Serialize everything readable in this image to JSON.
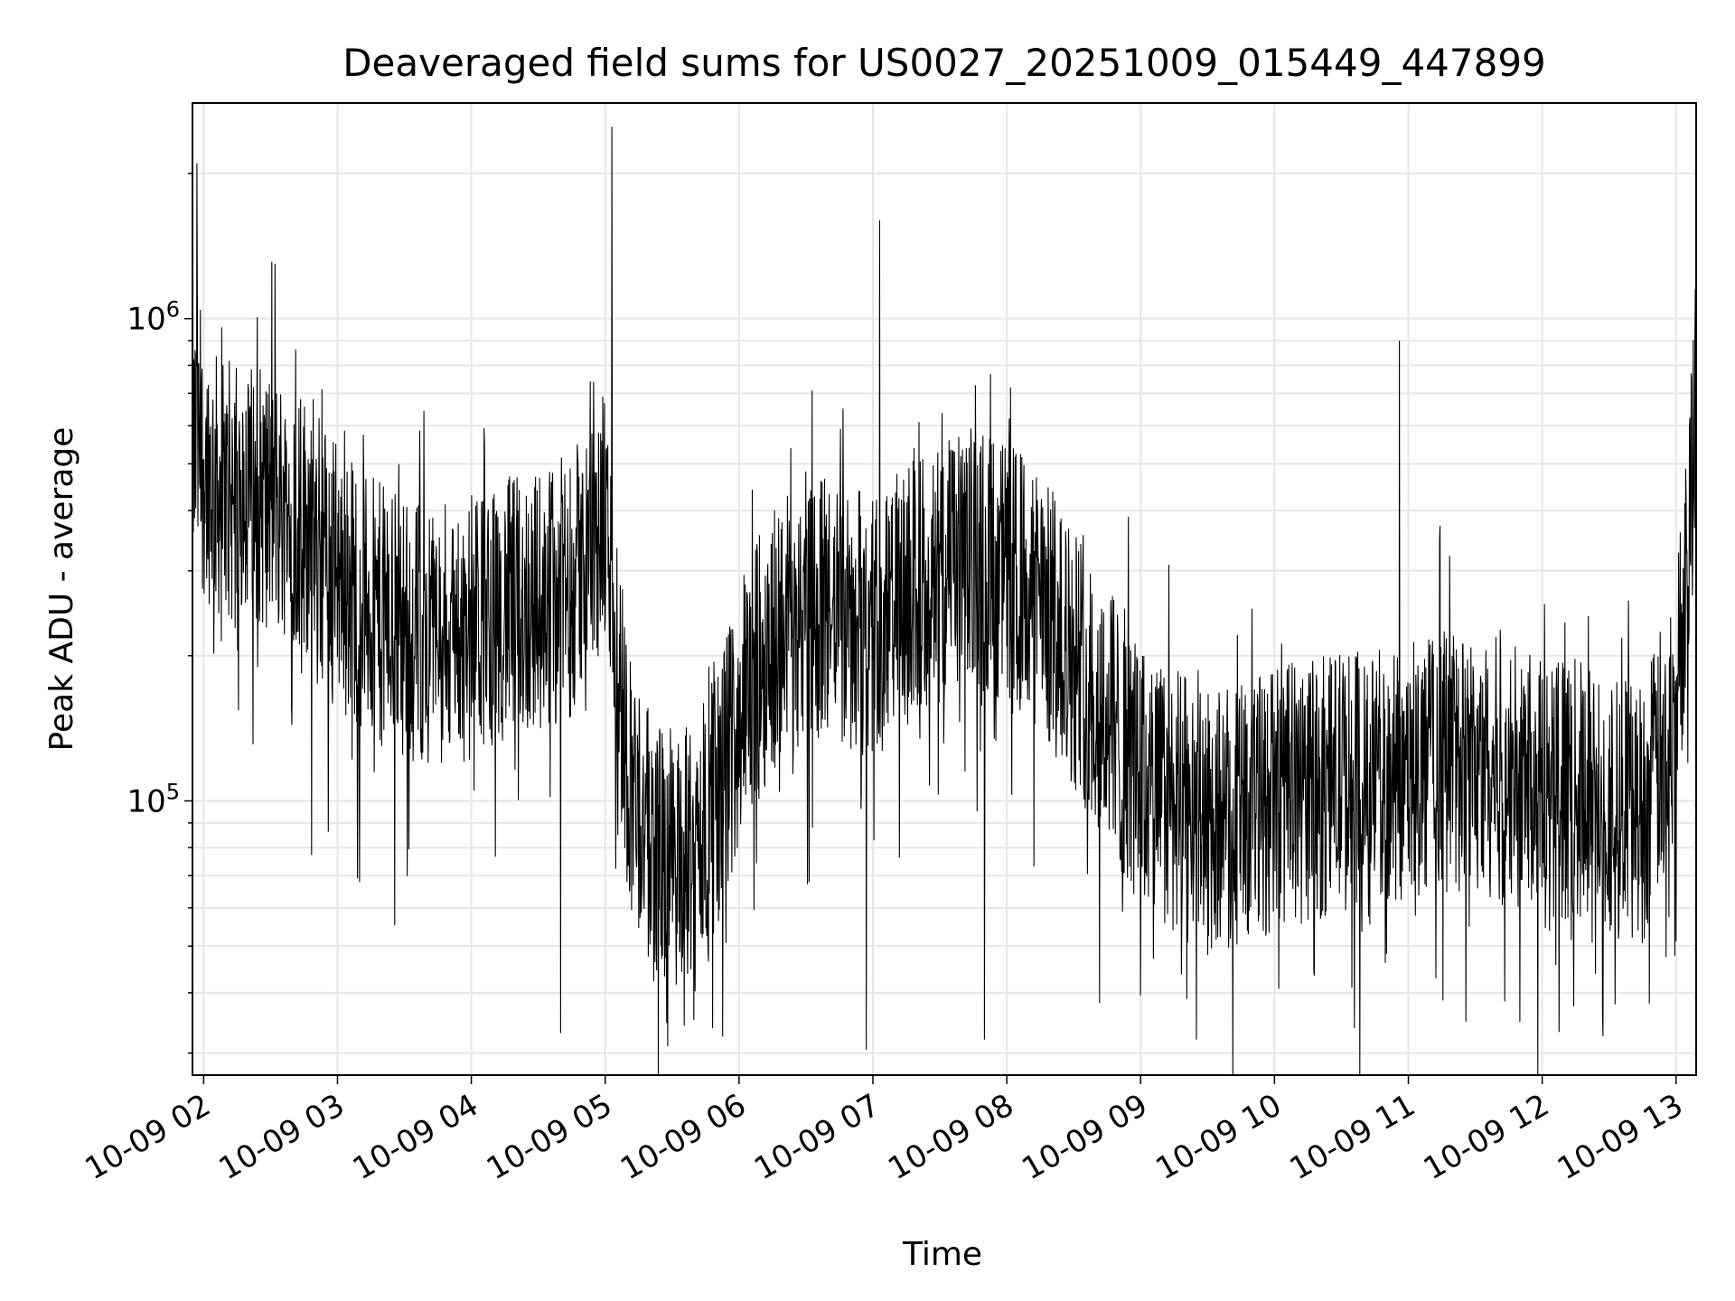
{
  "chart_data": {
    "type": "line",
    "title": "Deaveraged field sums for US0027_20251009_015449_447899",
    "xlabel": "Time",
    "ylabel": "Peak ADU - average",
    "yscale": "log",
    "ylim": [
      27000,
      2800000
    ],
    "xlim": [
      "2025-10-09 01:55",
      "2025-10-09 13:09"
    ],
    "grid": true,
    "line_color": "#000000",
    "grid_color": "#e6e6e6",
    "x_tick_labels": [
      "10-09 02",
      "10-09 03",
      "10-09 04",
      "10-09 05",
      "10-09 06",
      "10-09 07",
      "10-09 08",
      "10-09 09",
      "10-09 10",
      "10-09 11",
      "10-09 12",
      "10-09 13"
    ],
    "y_tick_labels": [
      {
        "base": "10",
        "exp": "5",
        "value": 100000
      },
      {
        "base": "10",
        "exp": "6",
        "value": 1000000
      }
    ],
    "series": [
      {
        "x": [
          "2025-10-09 01:55",
          "2025-10-09 02:00",
          "2025-10-09 02:10",
          "2025-10-09 02:20",
          "2025-10-09 02:30",
          "2025-10-09 02:45",
          "2025-10-09 03:00",
          "2025-10-09 03:15",
          "2025-10-09 03:30",
          "2025-10-09 03:45",
          "2025-10-09 04:00",
          "2025-10-09 04:15",
          "2025-10-09 04:30",
          "2025-10-09 04:45",
          "2025-10-09 05:00",
          "2025-10-09 05:10",
          "2025-10-09 05:20",
          "2025-10-09 05:30",
          "2025-10-09 05:40",
          "2025-10-09 05:50",
          "2025-10-09 06:00",
          "2025-10-09 06:15",
          "2025-10-09 06:30",
          "2025-10-09 06:45",
          "2025-10-09 07:00",
          "2025-10-09 07:15",
          "2025-10-09 07:30",
          "2025-10-09 07:45",
          "2025-10-09 08:00",
          "2025-10-09 08:15",
          "2025-10-09 08:30",
          "2025-10-09 08:45",
          "2025-10-09 09:00",
          "2025-10-09 09:15",
          "2025-10-09 09:30",
          "2025-10-09 09:45",
          "2025-10-09 10:00",
          "2025-10-09 10:15",
          "2025-10-09 10:30",
          "2025-10-09 10:45",
          "2025-10-09 11:00",
          "2025-10-09 11:15",
          "2025-10-09 11:30",
          "2025-10-09 11:45",
          "2025-10-09 12:00",
          "2025-10-09 12:15",
          "2025-10-09 12:30",
          "2025-10-09 12:45",
          "2025-10-09 13:00",
          "2025-10-09 13:09"
        ],
        "y": [
          550000,
          500000,
          420000,
          440000,
          420000,
          380000,
          300000,
          250000,
          230000,
          220000,
          230000,
          250000,
          260000,
          280000,
          380000,
          120000,
          80000,
          75000,
          80000,
          100000,
          150000,
          220000,
          250000,
          240000,
          230000,
          270000,
          300000,
          320000,
          300000,
          260000,
          200000,
          150000,
          110000,
          100000,
          90000,
          95000,
          100000,
          105000,
          110000,
          110000,
          115000,
          120000,
          120000,
          115000,
          110000,
          105000,
          100000,
          95000,
          150000,
          700000
        ]
      }
    ],
    "annotations": [
      {
        "x": "2025-10-09 01:57",
        "y": 2100000
      },
      {
        "x": "2025-10-09 02:32",
        "y": 1300000
      },
      {
        "x": "2025-10-09 05:03",
        "y": 2500000
      },
      {
        "x": "2025-10-09 07:03",
        "y": 1600000
      },
      {
        "x": "2025-10-09 10:56",
        "y": 900000
      },
      {
        "x": "2025-10-09 04:40",
        "y": 33000
      },
      {
        "x": "2025-10-09 05:28",
        "y": 31000
      },
      {
        "x": "2025-10-09 06:57",
        "y": 30500
      },
      {
        "x": "2025-10-09 07:50",
        "y": 32000
      },
      {
        "x": "2025-10-09 09:25",
        "y": 32000
      },
      {
        "x": "2025-10-09 12:48",
        "y": 38000
      }
    ]
  }
}
